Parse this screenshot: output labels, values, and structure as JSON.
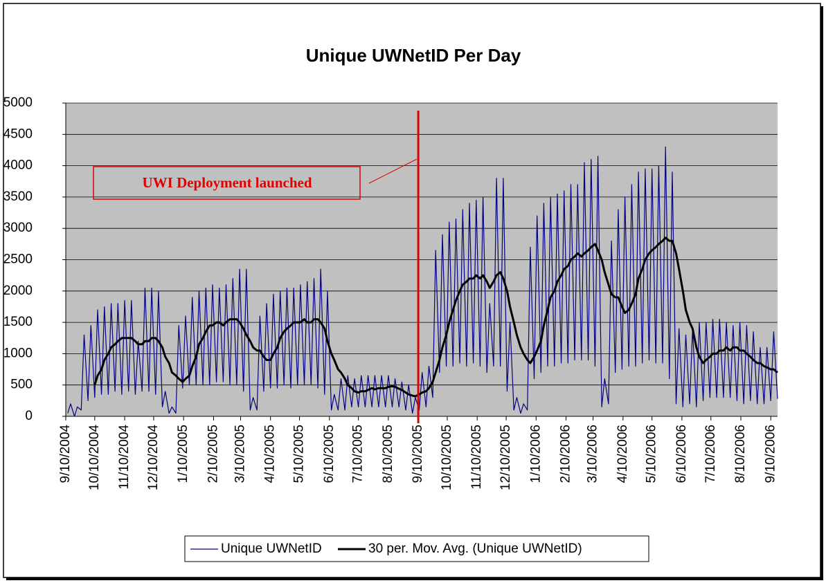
{
  "chart_data": {
    "type": "line",
    "title": "Unique UWNetID Per Day",
    "x": [
      "2004-09-12",
      "2004-09-15",
      "2004-09-19",
      "2004-09-22",
      "2004-09-26",
      "2004-09-29",
      "2004-10-03",
      "2004-10-06",
      "2004-10-10",
      "2004-10-13",
      "2004-10-17",
      "2004-10-20",
      "2004-10-24",
      "2004-10-27",
      "2004-10-31",
      "2004-11-03",
      "2004-11-07",
      "2004-11-10",
      "2004-11-14",
      "2004-11-17",
      "2004-11-21",
      "2004-11-24",
      "2004-11-28",
      "2004-12-01",
      "2004-12-05",
      "2004-12-08",
      "2004-12-12",
      "2004-12-15",
      "2004-12-19",
      "2004-12-22",
      "2004-12-26",
      "2004-12-29",
      "2005-01-02",
      "2005-01-05",
      "2005-01-09",
      "2005-01-12",
      "2005-01-16",
      "2005-01-19",
      "2005-01-23",
      "2005-01-26",
      "2005-01-30",
      "2005-02-02",
      "2005-02-06",
      "2005-02-09",
      "2005-02-13",
      "2005-02-16",
      "2005-02-20",
      "2005-02-23",
      "2005-02-27",
      "2005-03-02",
      "2005-03-06",
      "2005-03-09",
      "2005-03-13",
      "2005-03-16",
      "2005-03-20",
      "2005-03-23",
      "2005-03-27",
      "2005-03-30",
      "2005-04-03",
      "2005-04-06",
      "2005-04-10",
      "2005-04-13",
      "2005-04-17",
      "2005-04-20",
      "2005-04-24",
      "2005-04-27",
      "2005-05-01",
      "2005-05-04",
      "2005-05-08",
      "2005-05-11",
      "2005-05-15",
      "2005-05-18",
      "2005-05-22",
      "2005-05-25",
      "2005-05-29",
      "2005-06-01",
      "2005-06-05",
      "2005-06-08",
      "2005-06-12",
      "2005-06-15",
      "2005-06-19",
      "2005-06-22",
      "2005-06-26",
      "2005-06-29",
      "2005-07-03",
      "2005-07-06",
      "2005-07-10",
      "2005-07-13",
      "2005-07-17",
      "2005-07-20",
      "2005-07-24",
      "2005-07-27",
      "2005-07-31",
      "2005-08-03",
      "2005-08-07",
      "2005-08-10",
      "2005-08-14",
      "2005-08-17",
      "2005-08-21",
      "2005-08-24",
      "2005-08-28",
      "2005-08-31",
      "2005-09-04",
      "2005-09-07",
      "2005-09-11",
      "2005-09-14",
      "2005-09-18",
      "2005-09-21",
      "2005-09-25",
      "2005-09-28",
      "2005-10-02",
      "2005-10-05",
      "2005-10-09",
      "2005-10-12",
      "2005-10-16",
      "2005-10-19",
      "2005-10-23",
      "2005-10-26",
      "2005-10-30",
      "2005-11-02",
      "2005-11-06",
      "2005-11-09",
      "2005-11-13",
      "2005-11-16",
      "2005-11-20",
      "2005-11-23",
      "2005-11-27",
      "2005-11-30",
      "2005-12-04",
      "2005-12-07",
      "2005-12-11",
      "2005-12-14",
      "2005-12-18",
      "2005-12-21",
      "2005-12-25",
      "2005-12-28",
      "2006-01-01",
      "2006-01-04",
      "2006-01-08",
      "2006-01-11",
      "2006-01-15",
      "2006-01-18",
      "2006-01-22",
      "2006-01-25",
      "2006-01-29",
      "2006-02-01",
      "2006-02-05",
      "2006-02-08",
      "2006-02-12",
      "2006-02-15",
      "2006-02-19",
      "2006-02-22",
      "2006-02-26",
      "2006-03-01",
      "2006-03-05",
      "2006-03-08",
      "2006-03-12",
      "2006-03-15",
      "2006-03-19",
      "2006-03-22",
      "2006-03-26",
      "2006-03-29",
      "2006-04-02",
      "2006-04-05",
      "2006-04-09",
      "2006-04-12",
      "2006-04-16",
      "2006-04-19",
      "2006-04-23",
      "2006-04-26",
      "2006-04-30",
      "2006-05-03",
      "2006-05-07",
      "2006-05-10",
      "2006-05-14",
      "2006-05-17",
      "2006-05-21",
      "2006-05-24",
      "2006-05-28",
      "2006-05-31",
      "2006-06-04",
      "2006-06-07",
      "2006-06-11",
      "2006-06-14",
      "2006-06-18",
      "2006-06-21",
      "2006-06-25",
      "2006-06-28",
      "2006-07-02",
      "2006-07-05",
      "2006-07-09",
      "2006-07-12",
      "2006-07-16",
      "2006-07-19",
      "2006-07-23",
      "2006-07-26",
      "2006-07-30",
      "2006-08-02",
      "2006-08-06",
      "2006-08-09",
      "2006-08-13",
      "2006-08-16",
      "2006-08-20",
      "2006-08-23",
      "2006-08-27",
      "2006-08-30",
      "2006-09-03",
      "2006-09-06",
      "2006-09-10",
      "2006-09-13",
      "2006-09-17"
    ],
    "series": [
      {
        "name": "Unique UWNetID",
        "color": "#000080",
        "width": 1.2,
        "values": [
          50,
          200,
          0,
          150,
          100,
          1300,
          250,
          1450,
          300,
          1700,
          350,
          1750,
          350,
          1800,
          400,
          1800,
          350,
          1850,
          400,
          1850,
          350,
          1200,
          400,
          2050,
          400,
          2050,
          350,
          2000,
          150,
          400,
          50,
          150,
          50,
          1450,
          450,
          1600,
          500,
          1900,
          500,
          2000,
          500,
          2050,
          500,
          2100,
          550,
          2050,
          550,
          2100,
          500,
          2200,
          500,
          2350,
          400,
          2350,
          100,
          300,
          100,
          1600,
          400,
          1800,
          450,
          1950,
          450,
          2000,
          500,
          2050,
          450,
          2050,
          500,
          2100,
          500,
          2150,
          500,
          2200,
          450,
          2350,
          350,
          2000,
          100,
          350,
          100,
          600,
          100,
          650,
          150,
          600,
          150,
          650,
          150,
          650,
          150,
          650,
          150,
          650,
          150,
          650,
          150,
          600,
          150,
          550,
          100,
          500,
          50,
          300,
          100,
          700,
          150,
          800,
          300,
          2650,
          700,
          2900,
          800,
          3100,
          800,
          3150,
          850,
          3300,
          800,
          3400,
          850,
          3450,
          800,
          3500,
          700,
          1800,
          800,
          3800,
          800,
          3800,
          400,
          1500,
          100,
          300,
          50,
          200,
          100,
          2700,
          600,
          3200,
          700,
          3400,
          800,
          3500,
          800,
          3550,
          850,
          3600,
          850,
          3700,
          900,
          3700,
          900,
          4050,
          900,
          4100,
          800,
          4150,
          150,
          600,
          200,
          2800,
          700,
          3300,
          750,
          3500,
          800,
          3700,
          800,
          3900,
          850,
          3950,
          900,
          3950,
          850,
          4000,
          850,
          4300,
          600,
          3900,
          200,
          1400,
          150,
          1300,
          200,
          1400,
          150,
          1500,
          250,
          1500,
          300,
          1550,
          300,
          1550,
          300,
          1500,
          300,
          1450,
          250,
          1500,
          200,
          1450,
          250,
          1350,
          200,
          1100,
          200,
          1100,
          250,
          1350,
          280
        ]
      },
      {
        "name": "30 per. Mov. Avg. (Unique UWNetID)",
        "color": "#000000",
        "width": 3,
        "values": [
          null,
          null,
          null,
          null,
          null,
          null,
          null,
          null,
          500,
          650,
          750,
          900,
          1000,
          1100,
          1150,
          1200,
          1250,
          1250,
          1250,
          1250,
          1200,
          1150,
          1150,
          1200,
          1200,
          1250,
          1250,
          1200,
          1100,
          950,
          850,
          700,
          650,
          600,
          550,
          600,
          650,
          800,
          950,
          1150,
          1250,
          1350,
          1450,
          1450,
          1500,
          1500,
          1450,
          1500,
          1550,
          1550,
          1550,
          1500,
          1400,
          1300,
          1200,
          1100,
          1050,
          1050,
          950,
          900,
          900,
          1000,
          1100,
          1250,
          1350,
          1400,
          1450,
          1500,
          1500,
          1500,
          1550,
          1500,
          1500,
          1550,
          1550,
          1500,
          1400,
          1200,
          1000,
          900,
          750,
          700,
          600,
          500,
          450,
          400,
          380,
          400,
          400,
          420,
          450,
          430,
          450,
          450,
          450,
          470,
          480,
          470,
          440,
          420,
          380,
          350,
          330,
          320,
          350,
          380,
          400,
          450,
          550,
          700,
          900,
          1100,
          1300,
          1500,
          1700,
          1850,
          2000,
          2100,
          2150,
          2200,
          2200,
          2250,
          2200,
          2250,
          2150,
          2050,
          2150,
          2250,
          2300,
          2200,
          2000,
          1750,
          1500,
          1300,
          1100,
          1000,
          900,
          850,
          950,
          1050,
          1200,
          1450,
          1700,
          1900,
          2000,
          2150,
          2250,
          2350,
          2400,
          2500,
          2550,
          2600,
          2550,
          2600,
          2650,
          2700,
          2750,
          2650,
          2500,
          2300,
          2100,
          1950,
          1900,
          1900,
          1750,
          1650,
          1700,
          1800,
          1950,
          2200,
          2350,
          2500,
          2600,
          2650,
          2700,
          2750,
          2800,
          2850,
          2800,
          2800,
          2600,
          2350,
          2000,
          1700,
          1500,
          1400,
          1100,
          950,
          850,
          900,
          950,
          1000,
          1000,
          1050,
          1050,
          1100,
          1050,
          1100,
          1100,
          1050,
          1050,
          1000,
          950,
          900,
          850,
          850,
          800,
          780,
          750,
          750,
          700
        ]
      }
    ],
    "xlim": [
      "2004-09-10",
      "2006-09-17"
    ],
    "xticks": [
      {
        "value": "2004-09-10",
        "label": "9/10/2004"
      },
      {
        "value": "2004-10-10",
        "label": "10/10/2004"
      },
      {
        "value": "2004-11-10",
        "label": "11/10/2004"
      },
      {
        "value": "2004-12-10",
        "label": "12/10/2004"
      },
      {
        "value": "2005-01-10",
        "label": "1/10/2005"
      },
      {
        "value": "2005-02-10",
        "label": "2/10/2005"
      },
      {
        "value": "2005-03-10",
        "label": "3/10/2005"
      },
      {
        "value": "2005-04-10",
        "label": "4/10/2005"
      },
      {
        "value": "2005-05-10",
        "label": "5/10/2005"
      },
      {
        "value": "2005-06-10",
        "label": "6/10/2005"
      },
      {
        "value": "2005-07-10",
        "label": "7/10/2005"
      },
      {
        "value": "2005-08-10",
        "label": "8/10/2005"
      },
      {
        "value": "2005-09-10",
        "label": "9/10/2005"
      },
      {
        "value": "2005-10-10",
        "label": "10/10/2005"
      },
      {
        "value": "2005-11-10",
        "label": "11/10/2005"
      },
      {
        "value": "2005-12-10",
        "label": "12/10/2005"
      },
      {
        "value": "2006-01-10",
        "label": "1/10/2006"
      },
      {
        "value": "2006-02-10",
        "label": "2/10/2006"
      },
      {
        "value": "2006-03-10",
        "label": "3/10/2006"
      },
      {
        "value": "2006-04-10",
        "label": "4/10/2006"
      },
      {
        "value": "2006-05-10",
        "label": "5/10/2006"
      },
      {
        "value": "2006-06-10",
        "label": "6/10/2006"
      },
      {
        "value": "2006-07-10",
        "label": "7/10/2006"
      },
      {
        "value": "2006-08-10",
        "label": "8/10/2006"
      },
      {
        "value": "2006-09-10",
        "label": "9/10/2006"
      }
    ],
    "ylim": [
      0,
      5000
    ],
    "yticks": [
      0,
      500,
      1000,
      1500,
      2000,
      2500,
      3000,
      3500,
      4000,
      4500,
      5000
    ],
    "grid": true,
    "legend": "bottom",
    "annotations": [
      {
        "text": "UWI Deployment launched",
        "x": "2005-09-10",
        "color": "#e00000"
      }
    ]
  }
}
